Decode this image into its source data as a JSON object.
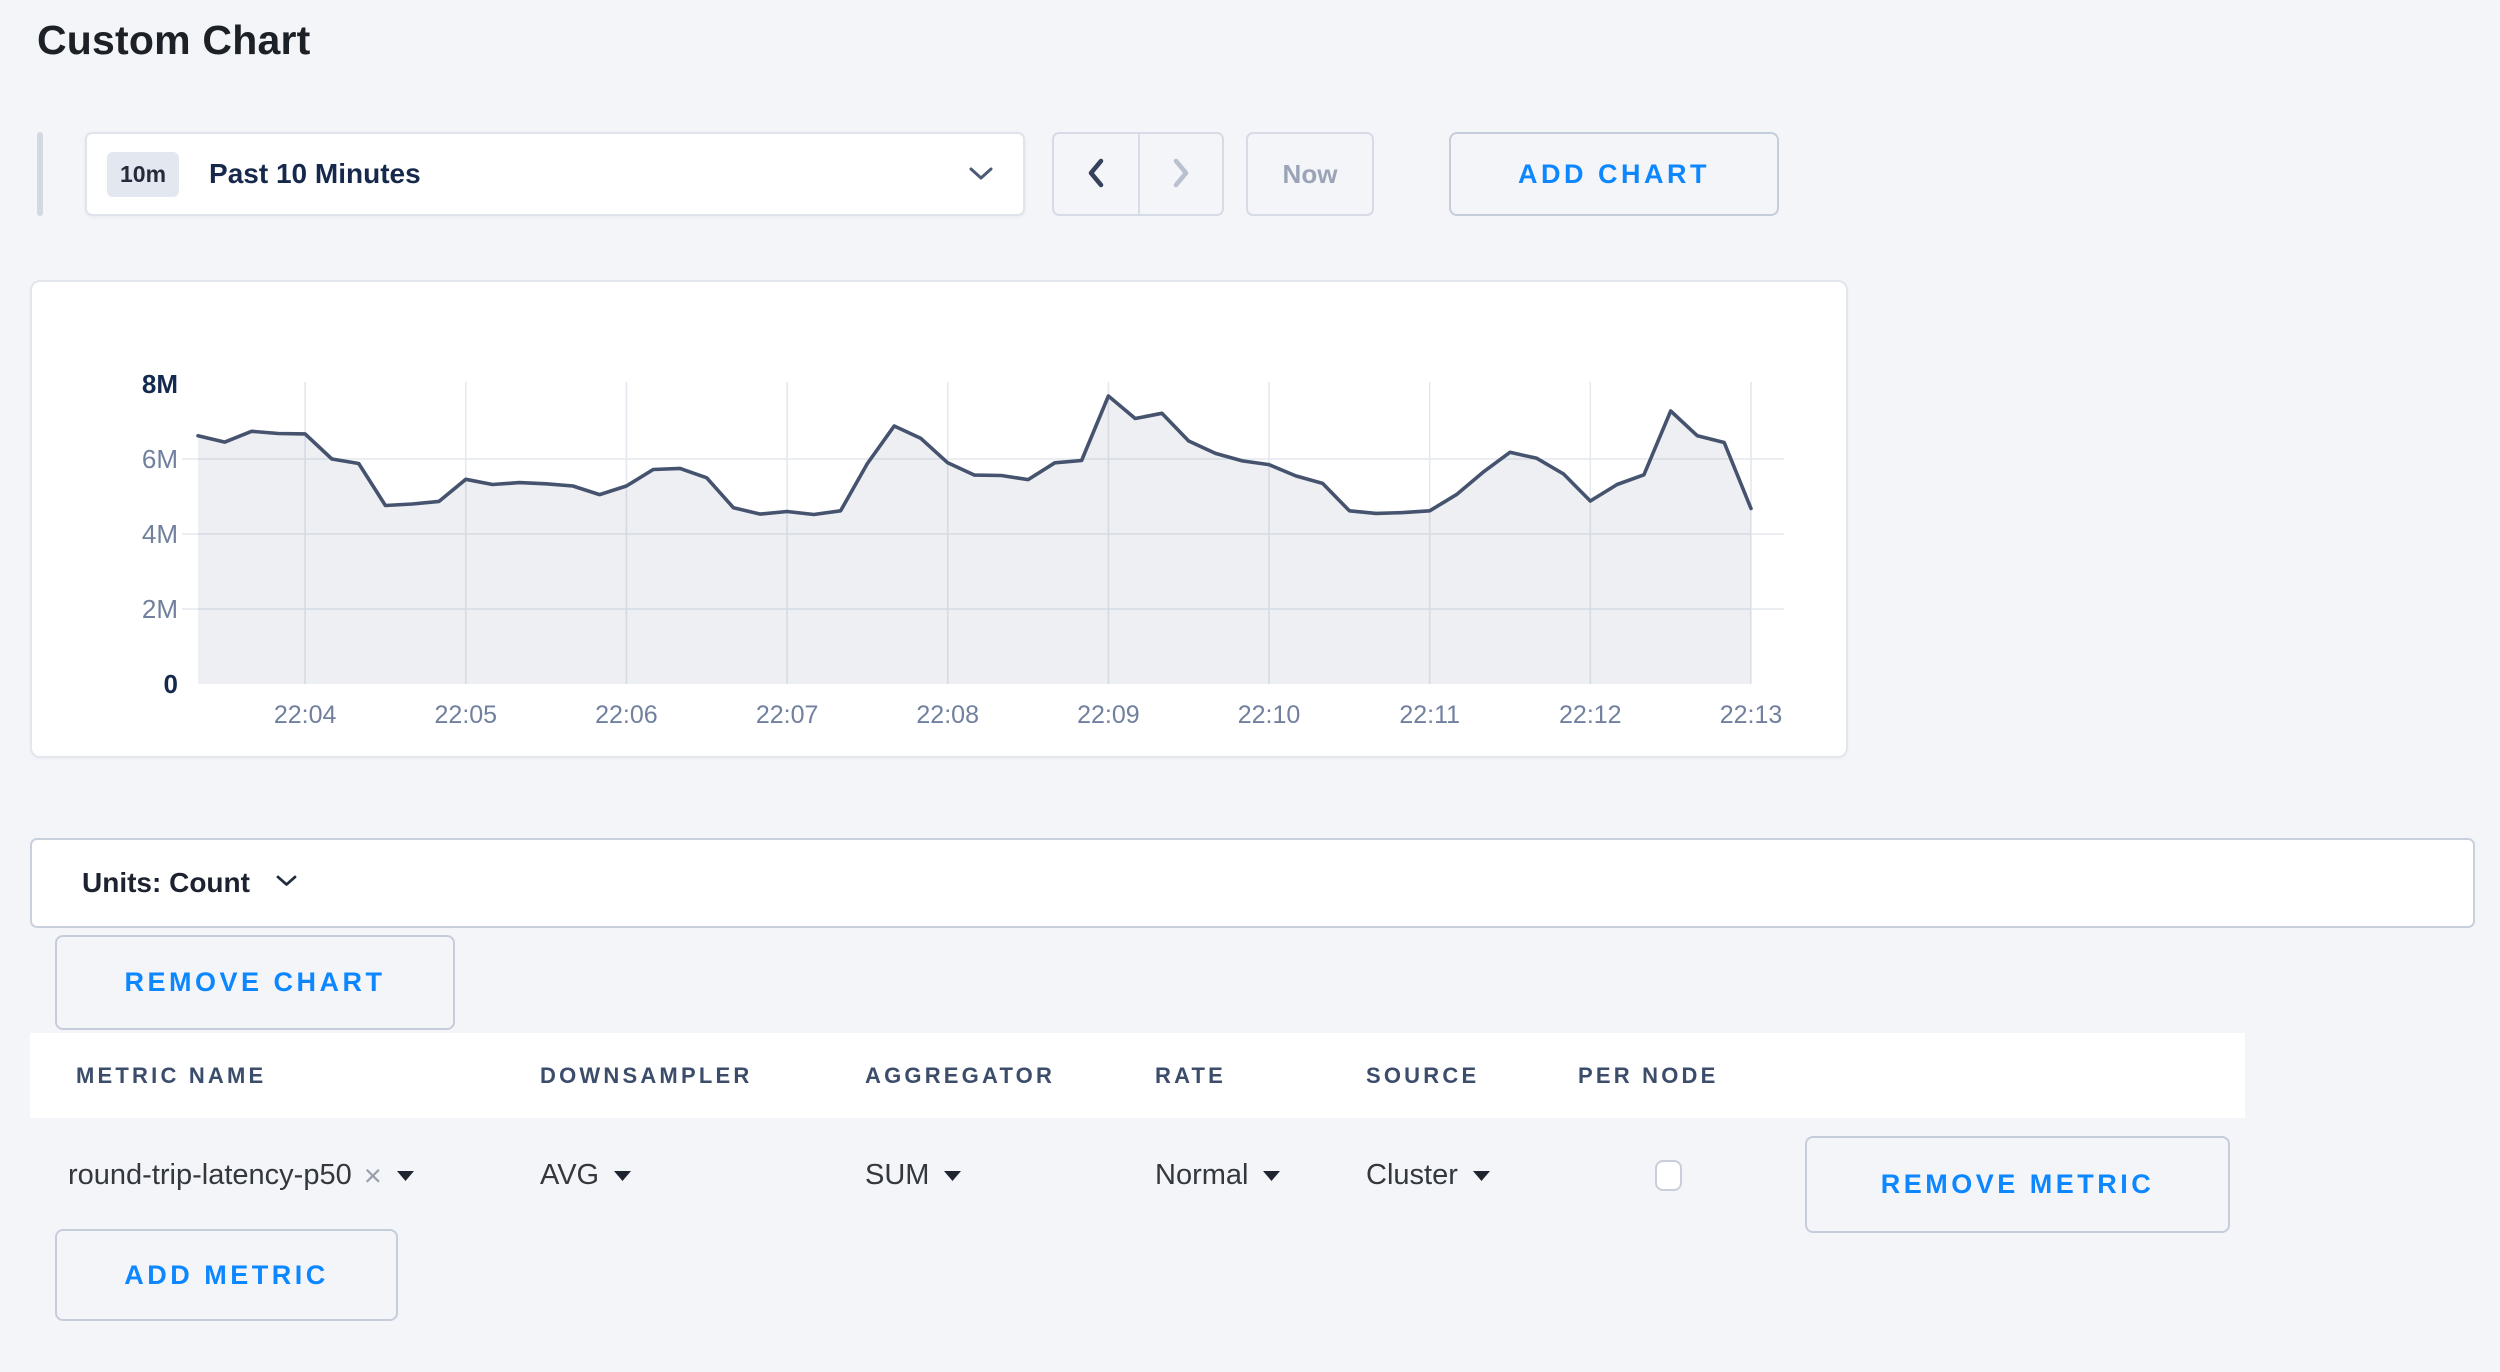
{
  "page": {
    "title": "Custom Chart"
  },
  "toolbar": {
    "time_range": {
      "badge": "10m",
      "label": "Past 10 Minutes"
    },
    "prev_icon": "chevron-left",
    "next_icon": "chevron-right",
    "now_label": "Now",
    "add_chart_label": "ADD CHART"
  },
  "chart_data": {
    "type": "area",
    "title": "",
    "xlabel": "",
    "ylabel": "",
    "x_start_label": "22:03:20",
    "x_interval_seconds": 10,
    "x_ticks": [
      {
        "label": "22:04",
        "index": 4
      },
      {
        "label": "22:05",
        "index": 10
      },
      {
        "label": "22:06",
        "index": 16
      },
      {
        "label": "22:07",
        "index": 22
      },
      {
        "label": "22:08",
        "index": 28
      },
      {
        "label": "22:09",
        "index": 34
      },
      {
        "label": "22:10",
        "index": 40
      },
      {
        "label": "22:11",
        "index": 46
      },
      {
        "label": "22:12",
        "index": 52
      },
      {
        "label": "22:13",
        "index": 58
      }
    ],
    "y_ticks": [
      {
        "label": "0",
        "value": 0,
        "grid": false,
        "emphasis": true
      },
      {
        "label": "2M",
        "value": 2,
        "grid": true,
        "emphasis": false
      },
      {
        "label": "4M",
        "value": 4,
        "grid": true,
        "emphasis": false
      },
      {
        "label": "6M",
        "value": 6,
        "grid": true,
        "emphasis": false
      },
      {
        "label": "8M",
        "value": 8,
        "grid": false,
        "emphasis": true
      }
    ],
    "ylim": [
      0,
      8
    ],
    "y_unit": "millions (Count)",
    "grid": true,
    "legend": "none",
    "series": [
      {
        "name": "round-trip-latency-p50",
        "values_millions": [
          6.62,
          6.45,
          6.74,
          6.68,
          6.67,
          6.0,
          5.88,
          4.76,
          4.8,
          4.87,
          5.46,
          5.32,
          5.37,
          5.34,
          5.28,
          5.05,
          5.28,
          5.72,
          5.75,
          5.5,
          4.7,
          4.53,
          4.6,
          4.52,
          4.62,
          5.88,
          6.88,
          6.55,
          5.9,
          5.57,
          5.56,
          5.45,
          5.9,
          5.96,
          7.68,
          7.08,
          7.22,
          6.48,
          6.15,
          5.95,
          5.85,
          5.55,
          5.35,
          4.62,
          4.55,
          4.57,
          4.62,
          5.05,
          5.65,
          6.18,
          6.02,
          5.6,
          4.88,
          5.32,
          5.58,
          7.28,
          6.62,
          6.44,
          4.68
        ]
      }
    ],
    "colors": {
      "line": "#46536E",
      "fill": "rgba(70,83,110,0.09)",
      "grid": "#E4E8EF",
      "axis_label": "#71809E",
      "axis_label_emphasis": "#14294E"
    }
  },
  "units_bar": {
    "label": "Units: Count"
  },
  "remove_chart_label": "REMOVE CHART",
  "metrics_table": {
    "headers": [
      "METRIC NAME",
      "DOWNSAMPLER",
      "AGGREGATOR",
      "RATE",
      "SOURCE",
      "PER NODE"
    ],
    "row": {
      "metric_name": "round-trip-latency-p50",
      "clear_icon": "×",
      "downsampler": "AVG",
      "aggregator": "SUM",
      "rate": "Normal",
      "source": "Cluster",
      "per_node_checked": false,
      "remove_label": "REMOVE METRIC"
    },
    "add_metric_label": "ADD METRIC"
  },
  "colors": {
    "accent_blue": "#0D87FF",
    "page_bg": "#F4F5F9",
    "card_bg": "#FFFFFF",
    "control_border": "#C9D0DE",
    "text_dark": "#16294C",
    "text_muted": "#9AA4B6"
  }
}
